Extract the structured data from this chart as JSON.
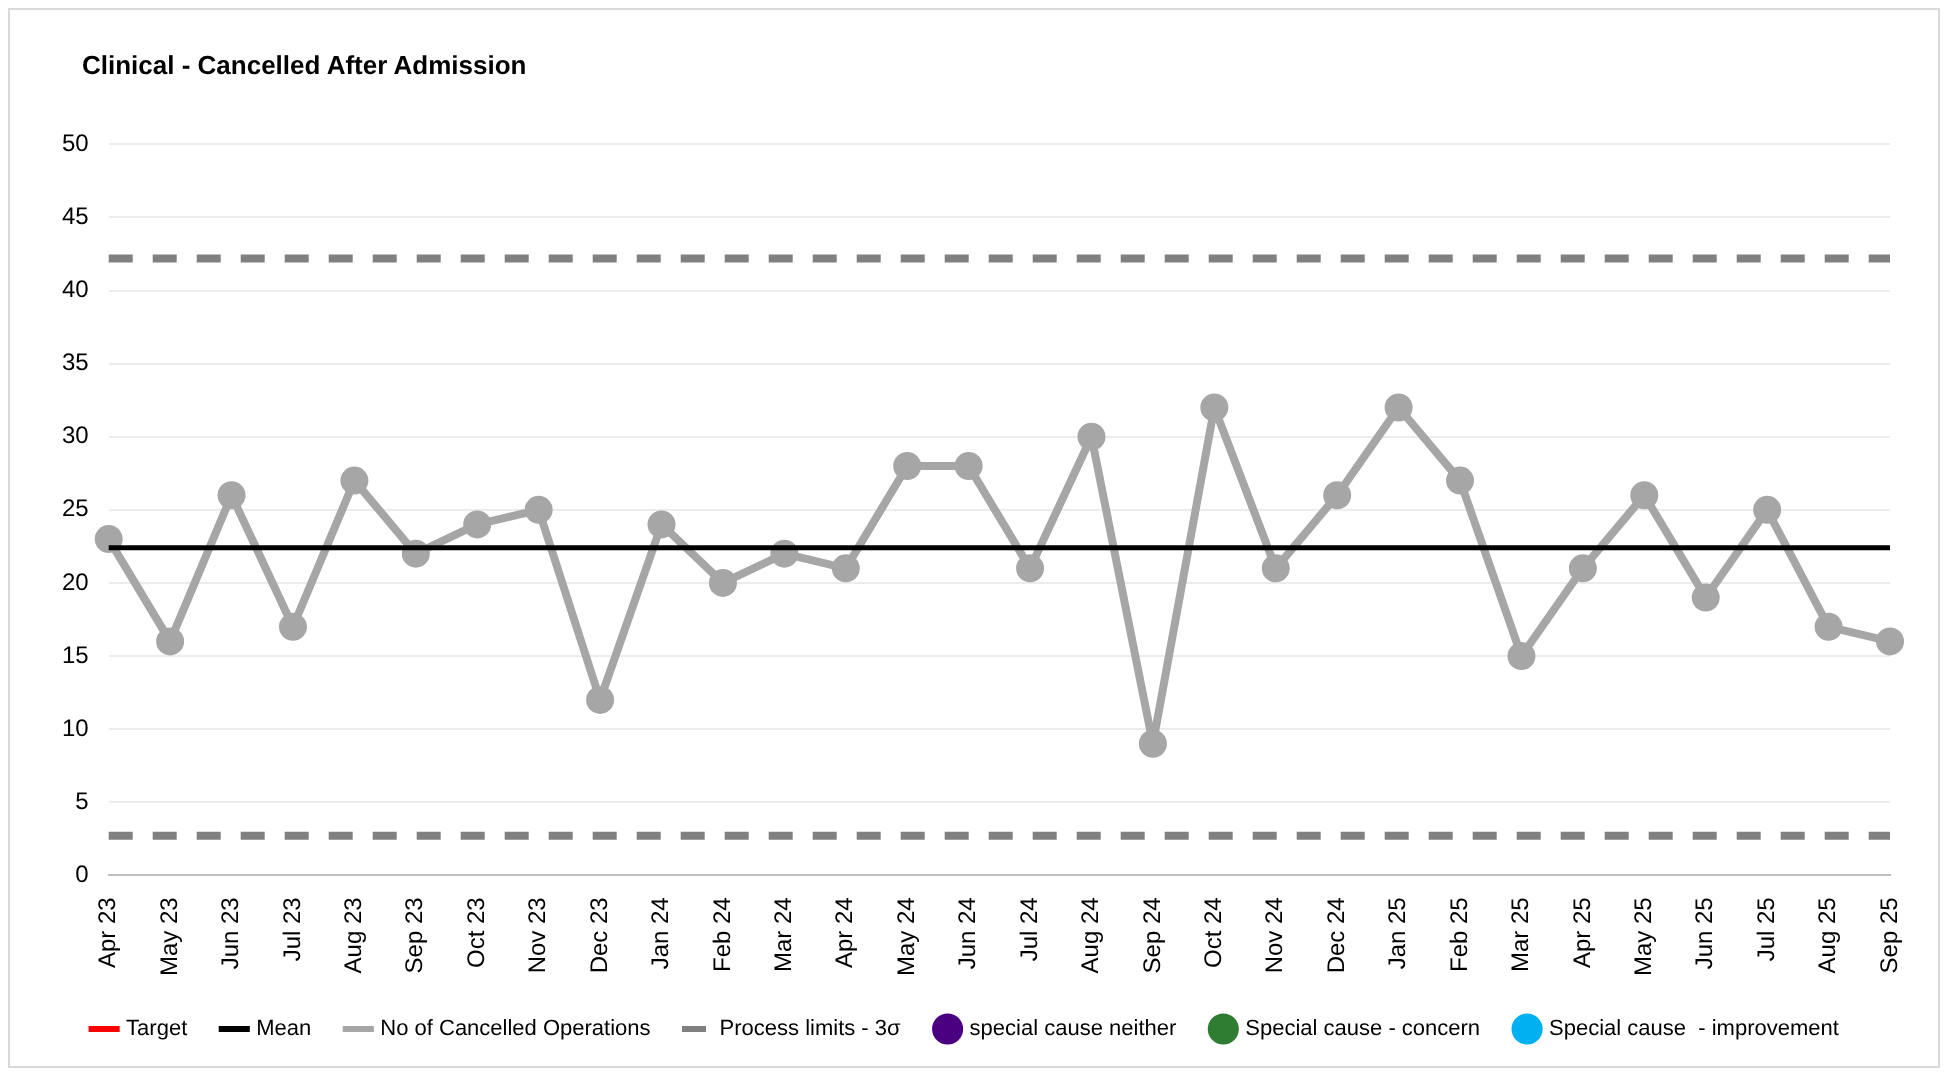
{
  "chart_data": {
    "type": "line",
    "title": "Clinical - Cancelled After Admission",
    "categories": [
      "Apr 23",
      "May 23",
      "Jun 23",
      "Jul 23",
      "Aug 23",
      "Sep 23",
      "Oct 23",
      "Nov 23",
      "Dec 23",
      "Jan 24",
      "Feb 24",
      "Mar 24",
      "Apr 24",
      "May 24",
      "Jun 24",
      "Jul 24",
      "Aug 24",
      "Sep 24",
      "Oct 24",
      "Nov 24",
      "Dec 24",
      "Jan 25",
      "Feb 25",
      "Mar 25",
      "Apr 25",
      "May 25",
      "Jun 25",
      "Jul 25",
      "Aug 25",
      "Sep 25"
    ],
    "series": [
      {
        "name": "Target",
        "color": "#ff0000",
        "marker": "none",
        "values": [
          null,
          null,
          null,
          null,
          null,
          null,
          null,
          null,
          null,
          null,
          null,
          null,
          null,
          null,
          null,
          null,
          null,
          null,
          null,
          null,
          null,
          null,
          null,
          null,
          null,
          null,
          null,
          null,
          null,
          null
        ]
      },
      {
        "name": "Mean",
        "color": "#000000",
        "marker": "none",
        "values": [
          22.4,
          22.4,
          22.4,
          22.4,
          22.4,
          22.4,
          22.4,
          22.4,
          22.4,
          22.4,
          22.4,
          22.4,
          22.4,
          22.4,
          22.4,
          22.4,
          22.4,
          22.4,
          22.4,
          22.4,
          22.4,
          22.4,
          22.4,
          22.4,
          22.4,
          22.4,
          22.4,
          22.4,
          22.4,
          22.4
        ]
      },
      {
        "name": "No of Cancelled Operations",
        "color": "#a6a6a6",
        "marker": "circle",
        "values": [
          23,
          16,
          26,
          17,
          27,
          22,
          24,
          25,
          12,
          24,
          20,
          22,
          21,
          28,
          28,
          21,
          30,
          9,
          32,
          21,
          26,
          32,
          27,
          15,
          21,
          26,
          19,
          25,
          17,
          16
        ]
      },
      {
        "name": "Process limits - 3σ",
        "color": "#808080",
        "marker": "none",
        "line_style": "dashed",
        "values": [
          42.2,
          42.2,
          42.2,
          42.2,
          42.2,
          42.2,
          42.2,
          42.2,
          42.2,
          42.2,
          42.2,
          42.2,
          42.2,
          42.2,
          42.2,
          42.2,
          42.2,
          42.2,
          42.2,
          42.2,
          42.2,
          42.2,
          42.2,
          42.2,
          42.2,
          42.2,
          42.2,
          42.2,
          42.2,
          42.2
        ]
      },
      {
        "color": "#808080",
        "marker": "none",
        "line_style": "dashed",
        "values": [
          2.7,
          2.7,
          2.7,
          2.7,
          2.7,
          2.7,
          2.7,
          2.7,
          2.7,
          2.7,
          2.7,
          2.7,
          2.7,
          2.7,
          2.7,
          2.7,
          2.7,
          2.7,
          2.7,
          2.7,
          2.7,
          2.7,
          2.7,
          2.7,
          2.7,
          2.7,
          2.7,
          2.7,
          2.7,
          2.7
        ]
      },
      {
        "name": "special cause neither",
        "type": "scatter",
        "color": "#4b0082",
        "marker": "circle",
        "values": [
          null,
          null,
          null,
          null,
          null,
          null,
          null,
          null,
          null,
          null,
          null,
          null,
          null,
          null,
          null,
          null,
          null,
          null,
          null,
          null,
          null,
          null,
          null,
          null,
          null,
          null,
          null,
          null,
          null,
          null
        ]
      },
      {
        "name": "Special cause - concern",
        "type": "scatter",
        "color": "#2e7d32",
        "marker": "circle",
        "values": [
          null,
          null,
          null,
          null,
          null,
          null,
          null,
          null,
          null,
          null,
          null,
          null,
          null,
          null,
          null,
          null,
          null,
          null,
          null,
          null,
          null,
          null,
          null,
          null,
          null,
          null,
          null,
          null,
          null,
          null
        ]
      },
      {
        "name": "Special cause  - improvement",
        "type": "scatter",
        "color": "#00b0f0",
        "marker": "circle",
        "values": [
          null,
          null,
          null,
          null,
          null,
          null,
          null,
          null,
          null,
          null,
          null,
          null,
          null,
          null,
          null,
          null,
          null,
          null,
          null,
          null,
          null,
          null,
          null,
          null,
          null,
          null,
          null,
          null,
          null,
          null
        ]
      }
    ],
    "ylim": [
      0,
      50
    ],
    "yticks": [
      0,
      5,
      10,
      15,
      20,
      25,
      30,
      35,
      40,
      45,
      50
    ],
    "grid": "y",
    "legend": "bottom"
  }
}
